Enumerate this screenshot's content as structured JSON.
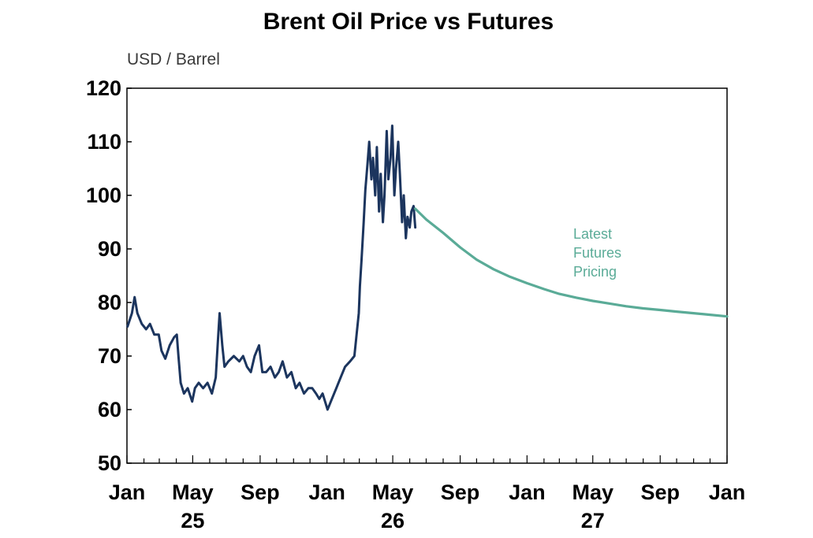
{
  "chart_data": {
    "type": "line",
    "title": "Brent Oil Price vs Futures",
    "ylabel": "USD / Barrel",
    "ylim": [
      50,
      120
    ],
    "yticks": [
      50,
      60,
      70,
      80,
      90,
      100,
      110,
      120
    ],
    "xlim": [
      "2025-01",
      "2028-01"
    ],
    "x_tick_labels": [
      "Jan",
      "May",
      "Sep",
      "Jan",
      "May",
      "Sep",
      "Jan",
      "May",
      "Sep",
      "Jan"
    ],
    "x_tick_months": [
      "2025-01",
      "2025-05",
      "2025-09",
      "2026-01",
      "2026-05",
      "2026-09",
      "2027-01",
      "2027-05",
      "2027-09",
      "2028-01"
    ],
    "year_labels": [
      "25",
      "26",
      "27"
    ],
    "grid": false,
    "annotation": {
      "lines": [
        "Latest",
        "Futures",
        "Pricing"
      ],
      "color": "#5aab97"
    },
    "series": [
      {
        "key": "spot",
        "color": "#1c355e",
        "x": [
          "2025-01-02",
          "2025-01-10",
          "2025-01-15",
          "2025-01-20",
          "2025-01-28",
          "2025-02-05",
          "2025-02-12",
          "2025-02-20",
          "2025-02-28",
          "2025-03-05",
          "2025-03-12",
          "2025-03-20",
          "2025-03-28",
          "2025-04-02",
          "2025-04-05",
          "2025-04-09",
          "2025-04-15",
          "2025-04-22",
          "2025-04-30",
          "2025-05-05",
          "2025-05-12",
          "2025-05-20",
          "2025-05-28",
          "2025-06-05",
          "2025-06-12",
          "2025-06-16",
          "2025-06-19",
          "2025-06-24",
          "2025-06-28",
          "2025-07-05",
          "2025-07-15",
          "2025-07-25",
          "2025-08-01",
          "2025-08-08",
          "2025-08-15",
          "2025-08-22",
          "2025-08-30",
          "2025-09-05",
          "2025-09-12",
          "2025-09-20",
          "2025-09-28",
          "2025-10-05",
          "2025-10-12",
          "2025-10-20",
          "2025-10-28",
          "2025-11-05",
          "2025-11-12",
          "2025-11-20",
          "2025-11-28",
          "2025-12-05",
          "2025-12-12",
          "2025-12-18",
          "2025-12-24",
          "2026-01-02",
          "2026-01-10",
          "2026-01-18",
          "2026-01-26",
          "2026-02-03",
          "2026-02-12",
          "2026-02-20",
          "2026-02-28",
          "2026-03-02",
          "2026-03-05",
          "2026-03-09",
          "2026-03-12",
          "2026-03-16",
          "2026-03-19",
          "2026-03-23",
          "2026-03-26",
          "2026-03-30",
          "2026-04-02",
          "2026-04-06",
          "2026-04-09",
          "2026-04-13",
          "2026-04-16",
          "2026-04-20",
          "2026-04-23",
          "2026-04-27",
          "2026-04-30",
          "2026-05-04",
          "2026-05-07",
          "2026-05-11",
          "2026-05-14",
          "2026-05-18",
          "2026-05-21",
          "2026-05-25",
          "2026-05-28",
          "2026-06-01",
          "2026-06-04",
          "2026-06-08",
          "2026-06-11"
        ],
        "values": [
          75.5,
          78,
          81,
          78,
          76,
          75,
          76,
          74,
          74,
          71,
          69.5,
          72,
          73.5,
          74,
          70,
          65,
          63,
          64,
          61.5,
          64,
          65,
          64,
          65,
          63,
          66,
          73,
          78,
          72,
          68,
          69,
          70,
          69,
          70,
          68,
          67,
          70,
          72,
          67,
          67,
          68,
          66,
          67,
          69,
          66,
          67,
          64,
          65,
          63,
          64,
          64,
          63,
          62,
          63,
          60,
          62,
          64,
          66,
          68,
          69,
          70,
          78,
          83,
          88,
          95,
          101,
          106,
          110,
          103,
          107,
          100,
          109,
          97,
          104,
          95,
          100,
          112,
          103,
          107,
          113,
          100,
          105,
          110,
          104,
          95,
          100,
          92,
          96,
          94,
          97,
          98,
          94
        ]
      },
      {
        "key": "futures",
        "color": "#5aab97",
        "x": [
          "2026-06-11",
          "2026-07-01",
          "2026-08-01",
          "2026-09-01",
          "2026-10-01",
          "2026-11-01",
          "2026-12-01",
          "2027-01-01",
          "2027-02-01",
          "2027-03-01",
          "2027-04-01",
          "2027-05-01",
          "2027-06-01",
          "2027-07-01",
          "2027-08-01",
          "2027-09-01",
          "2027-10-01",
          "2027-11-01",
          "2027-12-01",
          "2028-01-01"
        ],
        "values": [
          97.5,
          95.5,
          93,
          90.3,
          88,
          86.2,
          84.8,
          83.6,
          82.5,
          81.6,
          80.9,
          80.3,
          79.8,
          79.3,
          78.9,
          78.6,
          78.3,
          78.0,
          77.7,
          77.4
        ]
      }
    ]
  }
}
